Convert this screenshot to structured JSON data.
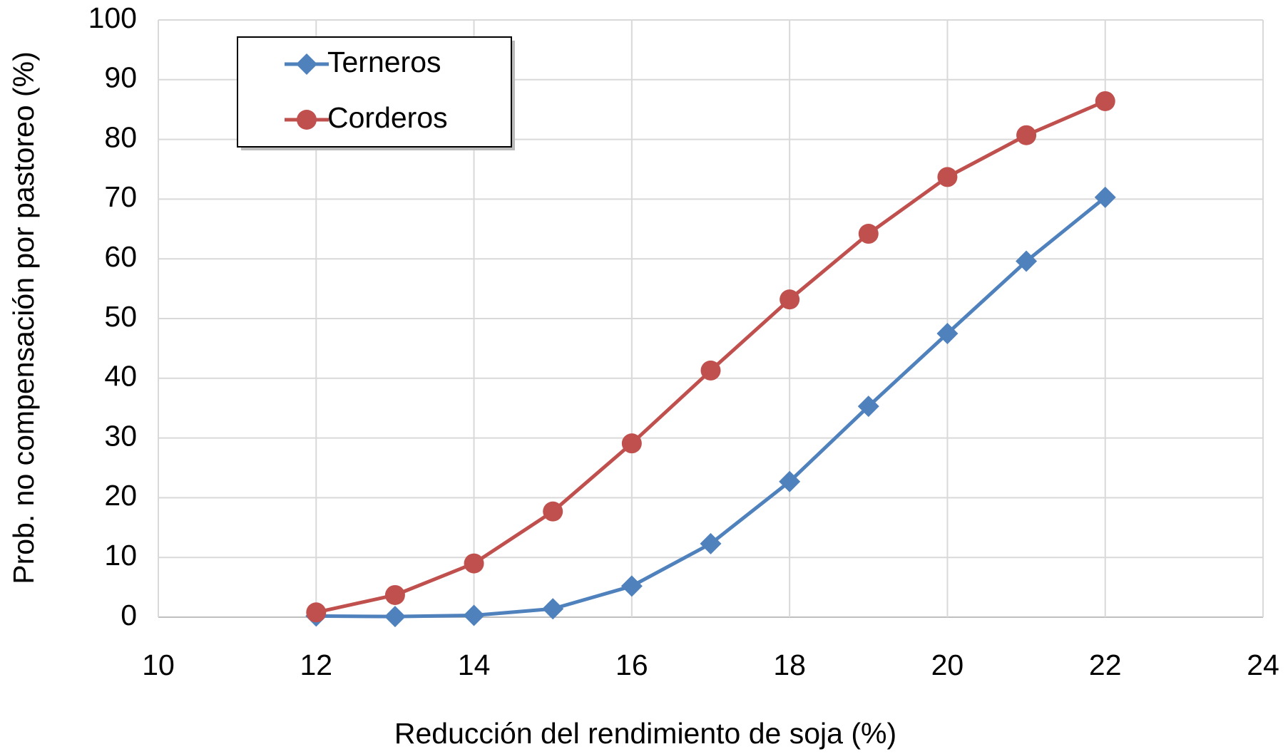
{
  "chart_data": {
    "type": "line",
    "xlabel": "Reducción del rendimiento de soja (%)",
    "ylabel": "Prob. no compensación por pastoreo (%)",
    "x": [
      12,
      13,
      14,
      15,
      16,
      17,
      18,
      19,
      20,
      21,
      22
    ],
    "series": [
      {
        "name": "Terneros",
        "color": "#4f81bd",
        "marker": "diamond",
        "values": [
          0.2,
          0.1,
          0.3,
          1.4,
          5.2,
          12.3,
          22.7,
          35.3,
          47.5,
          59.6,
          70.3
        ]
      },
      {
        "name": "Corderos",
        "color": "#c0504d",
        "marker": "circle",
        "values": [
          0.8,
          3.7,
          9.0,
          17.7,
          29.1,
          41.3,
          53.2,
          64.2,
          73.7,
          80.7,
          86.4
        ]
      }
    ],
    "xlim": [
      10,
      24
    ],
    "xticks": [
      10,
      12,
      14,
      16,
      18,
      20,
      22,
      24
    ],
    "ylim": [
      0,
      100
    ],
    "yticks": [
      0,
      10,
      20,
      30,
      40,
      50,
      60,
      70,
      80,
      90,
      100
    ],
    "grid": true,
    "legend": "upper left"
  }
}
